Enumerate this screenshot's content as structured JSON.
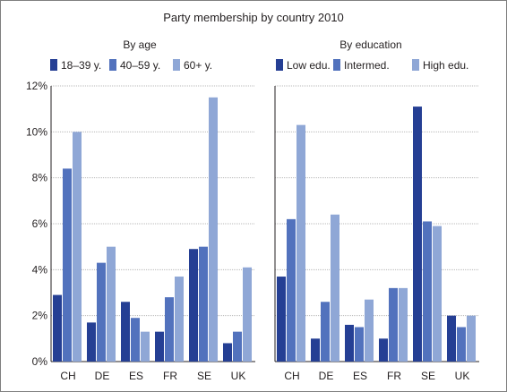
{
  "chart_data": {
    "title": "Party membership by country 2010",
    "panels": [
      {
        "type": "bar",
        "subtitle": "By age",
        "categories": [
          "CH",
          "DE",
          "ES",
          "FR",
          "SE",
          "UK"
        ],
        "series": [
          {
            "name": "18–39 y.",
            "color": "#253f94",
            "values": [
              2.9,
              1.7,
              2.6,
              1.3,
              4.9,
              0.8
            ]
          },
          {
            "name": "40–59 y.",
            "color": "#5272bd",
            "values": [
              8.4,
              4.3,
              1.9,
              2.8,
              5.0,
              1.3
            ]
          },
          {
            "name": "60+ y.",
            "color": "#8fa7d6",
            "values": [
              10.0,
              5.0,
              1.3,
              3.7,
              11.5,
              4.1
            ]
          }
        ],
        "ylim": [
          0,
          12
        ],
        "yticks": [
          "0%",
          "2%",
          "4%",
          "6%",
          "8%",
          "10%",
          "12%"
        ],
        "grid": true,
        "legend": "top"
      },
      {
        "type": "bar",
        "subtitle": "By education",
        "categories": [
          "CH",
          "DE",
          "ES",
          "FR",
          "SE",
          "UK"
        ],
        "series": [
          {
            "name": "Low edu.",
            "color": "#253f94",
            "values": [
              3.7,
              1.0,
              1.6,
              1.0,
              11.1,
              2.0
            ]
          },
          {
            "name": "Intermed.",
            "color": "#5272bd",
            "values": [
              6.2,
              2.6,
              1.5,
              3.2,
              6.1,
              1.5
            ]
          },
          {
            "name": "High edu.",
            "color": "#8fa7d6",
            "values": [
              10.3,
              6.4,
              2.7,
              3.2,
              5.9,
              2.0
            ]
          }
        ],
        "ylim": [
          0,
          12
        ],
        "grid": true,
        "legend": "top"
      }
    ]
  }
}
